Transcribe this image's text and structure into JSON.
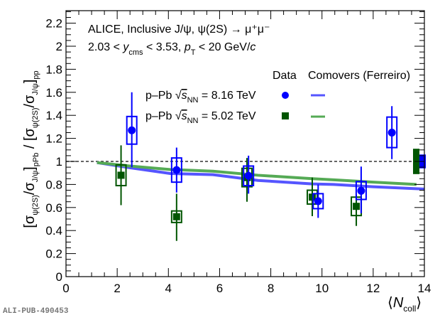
{
  "chart_data": {
    "type": "scatter",
    "title": "",
    "xlabel": "⟨N_coll⟩",
    "ylabel": "[σψ(2S)/σJ/ψ]pPb / [σψ(2S)/σJ/ψ]pp",
    "xlim": [
      0,
      14
    ],
    "ylim": [
      0,
      2.3
    ],
    "x_ticks": [
      0,
      2,
      4,
      6,
      8,
      10,
      12,
      14
    ],
    "y_ticks": [
      0,
      0.2,
      0.4,
      0.6,
      0.8,
      1,
      1.2,
      1.4,
      1.6,
      1.8,
      2,
      2.2
    ],
    "reference_line": 1,
    "annotations": {
      "line1": "ALICE, Inclusive J/ψ, ψ(2S) → μ⁺μ⁻",
      "line2_a": "2.03 < ",
      "line2_y": "y",
      "line2_ysub": "cms",
      "line2_b": " < 3.53, ",
      "line2_pt": "p",
      "line2_ptsub": "T",
      "line2_c": " < 20 GeV/",
      "line2_cunit": "c"
    },
    "legend": {
      "header_data": "Data",
      "header_model": "Comovers (Ferreiro)",
      "placement": "top-right"
    },
    "series": [
      {
        "name": "p–Pb √sNN = 8.16 TeV",
        "label_prefix": "p–Pb ",
        "label_s": "s",
        "label_sub": "NN",
        "label_suffix": " = 8.16 TeV",
        "color": "#0000ff",
        "marker": "circle",
        "points": [
          {
            "x": 2.57,
            "y": 1.27,
            "stat_lo": 0.95,
            "stat_hi": 1.6,
            "sys_lo": 1.15,
            "sys_hi": 1.39
          },
          {
            "x": 4.32,
            "y": 0.925,
            "stat_lo": 0.73,
            "stat_hi": 1.12,
            "sys_lo": 0.82,
            "sys_hi": 1.03
          },
          {
            "x": 7.13,
            "y": 0.875,
            "stat_lo": 0.72,
            "stat_hi": 1.05,
            "sys_lo": 0.79,
            "sys_hi": 0.96
          },
          {
            "x": 9.85,
            "y": 0.655,
            "stat_lo": 0.51,
            "stat_hi": 0.8,
            "sys_lo": 0.59,
            "sys_hi": 0.72
          },
          {
            "x": 11.53,
            "y": 0.745,
            "stat_lo": 0.55,
            "stat_hi": 0.955,
            "sys_lo": 0.67,
            "sys_hi": 0.825
          },
          {
            "x": 12.73,
            "y": 1.25,
            "stat_lo": 1.02,
            "stat_hi": 1.48,
            "sys_lo": 1.12,
            "sys_hi": 1.385
          }
        ],
        "global_unc": [
          0.94,
          1.06
        ],
        "model": {
          "color": "#5555ff",
          "x": [
            1.21,
            2.5,
            4.07,
            5.74,
            7.5,
            9.62,
            10.45,
            12,
            14
          ],
          "y": [
            0.99,
            0.945,
            0.895,
            0.885,
            0.835,
            0.805,
            0.8,
            0.78,
            0.76
          ]
        }
      },
      {
        "name": "p–Pb √sNN = 5.02 TeV",
        "label_prefix": "p–Pb ",
        "label_s": "s",
        "label_sub": "NN",
        "label_suffix": " = 5.02 TeV",
        "color": "#005500",
        "marker": "square",
        "points": [
          {
            "x": 2.15,
            "y": 0.88,
            "stat_lo": 0.62,
            "stat_hi": 1.14,
            "sys_lo": 0.79,
            "sys_hi": 0.97
          },
          {
            "x": 4.32,
            "y": 0.52,
            "stat_lo": 0.31,
            "stat_hi": 0.72,
            "sys_lo": 0.47,
            "sys_hi": 0.57
          },
          {
            "x": 7.07,
            "y": 0.86,
            "stat_lo": 0.65,
            "stat_hi": 1.03,
            "sys_lo": 0.78,
            "sys_hi": 0.94
          },
          {
            "x": 9.62,
            "y": 0.69,
            "stat_lo": 0.525,
            "stat_hi": 0.86,
            "sys_lo": 0.63,
            "sys_hi": 0.75
          },
          {
            "x": 11.34,
            "y": 0.61,
            "stat_lo": 0.44,
            "stat_hi": 0.71,
            "sys_lo": 0.53,
            "sys_hi": 0.69
          }
        ],
        "global_unc": [
          0.89,
          1.11
        ],
        "model": {
          "color": "#55aa55",
          "x": [
            1.21,
            2.5,
            4.07,
            5.74,
            7.5,
            9.62,
            10.45,
            12,
            13.69
          ],
          "y": [
            0.99,
            0.96,
            0.93,
            0.915,
            0.88,
            0.85,
            0.84,
            0.82,
            0.8
          ]
        }
      }
    ]
  },
  "footer": {
    "pub_id": "ALI-PUB-490453"
  }
}
